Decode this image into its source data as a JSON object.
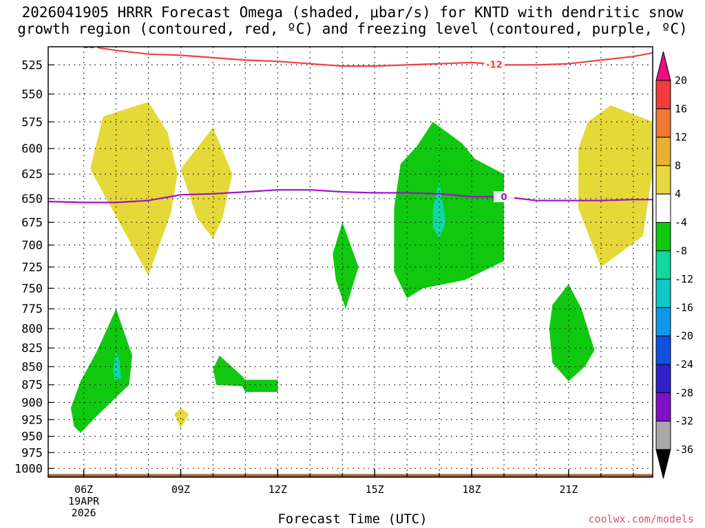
{
  "title_line1": "2026041905 HRRR Forecast Omega (shaded, μbar/s) for KNTD with dendritic snow",
  "title_line2": "growth region (contoured, red, ºC) and freezing level (contoured, purple, ºC)",
  "xlabel": "Forecast Time (UTC)",
  "credit": "coolwx.com/models",
  "chart_data": {
    "type": "heatmap",
    "x_axis": {
      "unit": "hour UTC",
      "range": [
        4.9,
        23.6
      ],
      "ticks": [
        {
          "hour": 6,
          "label": "06Z",
          "sub1": "19APR",
          "sub2": "2026"
        },
        {
          "hour": 9,
          "label": "09Z"
        },
        {
          "hour": 12,
          "label": "12Z"
        },
        {
          "hour": 15,
          "label": "15Z"
        },
        {
          "hour": 18,
          "label": "18Z"
        },
        {
          "hour": 21,
          "label": "21Z"
        }
      ],
      "grid_hours": [
        6,
        7,
        8,
        9,
        10,
        11,
        12,
        13,
        14,
        15,
        16,
        17,
        18,
        19,
        20,
        21,
        22,
        23
      ]
    },
    "y_axis": {
      "unit": "hPa",
      "scale": "log",
      "range": [
        510,
        1014
      ],
      "ticks": [
        525,
        550,
        575,
        600,
        625,
        650,
        675,
        700,
        725,
        750,
        775,
        800,
        825,
        850,
        875,
        900,
        925,
        950,
        975,
        1000
      ]
    },
    "grid": "dotted",
    "colorbar": {
      "levels": [
        20,
        16,
        12,
        8,
        4,
        -4,
        -8,
        -12,
        -16,
        -20,
        -24,
        -28,
        -32,
        -36
      ],
      "colors": [
        "#e8107a",
        "#f03c3c",
        "#f07830",
        "#e8b030",
        "#e8d840",
        "#ffffff",
        "#10c810",
        "#10d8a0",
        "#10c8c8",
        "#1098e8",
        "#1050e0",
        "#3020c8",
        "#8010c8",
        "#a8a8a8",
        "#000000"
      ]
    },
    "shaded_regions": [
      {
        "class": "+4 to +8",
        "color": "#e5d93a",
        "points": [
          [
            6.2,
            620
          ],
          [
            6.6,
            570
          ],
          [
            8.0,
            557
          ],
          [
            8.6,
            585
          ],
          [
            8.9,
            625
          ],
          [
            8.7,
            665
          ],
          [
            8.0,
            735
          ]
        ]
      },
      {
        "class": "+4 to +8",
        "color": "#e5d93a",
        "points": [
          [
            9.0,
            620
          ],
          [
            10.0,
            580
          ],
          [
            10.6,
            625
          ],
          [
            10.3,
            670
          ],
          [
            10.0,
            693
          ],
          [
            9.5,
            670
          ]
        ]
      },
      {
        "class": "+4 to +8",
        "color": "#e5d93a",
        "points": [
          [
            21.3,
            600
          ],
          [
            21.6,
            575
          ],
          [
            22.3,
            560
          ],
          [
            23.6,
            575
          ],
          [
            23.6,
            622
          ],
          [
            23.3,
            690
          ],
          [
            22.0,
            725
          ],
          [
            21.3,
            660
          ]
        ]
      },
      {
        "class": "+4 to +8",
        "color": "#e5d93a",
        "points": [
          [
            8.8,
            917
          ],
          [
            9.0,
            908
          ],
          [
            9.25,
            917
          ],
          [
            9.0,
            938
          ]
        ]
      },
      {
        "class": "-4 to -8",
        "color": "#10c810",
        "points": [
          [
            5.6,
            908
          ],
          [
            5.9,
            870
          ],
          [
            6.4,
            830
          ],
          [
            7.0,
            775
          ],
          [
            7.5,
            835
          ],
          [
            7.4,
            875
          ],
          [
            6.4,
            920
          ],
          [
            5.9,
            945
          ],
          [
            5.7,
            935
          ]
        ]
      },
      {
        "class": "-4 to -8",
        "color": "#10c810",
        "points": [
          [
            10.0,
            853
          ],
          [
            10.2,
            835
          ],
          [
            10.9,
            863
          ],
          [
            11.0,
            868
          ],
          [
            12.0,
            868
          ],
          [
            12.0,
            885
          ],
          [
            11.0,
            885
          ],
          [
            10.9,
            877
          ],
          [
            10.1,
            875
          ]
        ]
      },
      {
        "class": "-4 to -8",
        "color": "#10c810",
        "points": [
          [
            13.7,
            710
          ],
          [
            14.0,
            675
          ],
          [
            14.5,
            725
          ],
          [
            14.1,
            775
          ],
          [
            13.8,
            740
          ]
        ]
      },
      {
        "class": "-4 to -8",
        "color": "#10c810",
        "points": [
          [
            15.6,
            660
          ],
          [
            15.8,
            615
          ],
          [
            16.3,
            598
          ],
          [
            16.8,
            575
          ],
          [
            17.7,
            595
          ],
          [
            18.1,
            610
          ],
          [
            19.0,
            625
          ],
          [
            19.0,
            718
          ],
          [
            17.8,
            740
          ],
          [
            16.5,
            750
          ],
          [
            16.0,
            762
          ],
          [
            15.6,
            730
          ]
        ]
      },
      {
        "class": "-4 to -8",
        "color": "#10c810",
        "points": [
          [
            20.4,
            800
          ],
          [
            20.5,
            770
          ],
          [
            21.0,
            745
          ],
          [
            21.4,
            775
          ],
          [
            21.8,
            828
          ],
          [
            21.5,
            850
          ],
          [
            21.0,
            870
          ],
          [
            20.5,
            845
          ]
        ]
      },
      {
        "class": "-8 to -12",
        "color": "#10d8a0",
        "points": [
          [
            16.8,
            660
          ],
          [
            17.0,
            632
          ],
          [
            17.2,
            675
          ],
          [
            17.0,
            693
          ],
          [
            16.8,
            680
          ]
        ]
      },
      {
        "class": "-8 to -12",
        "color": "#10d8a0",
        "points": [
          [
            6.9,
            855
          ],
          [
            7.0,
            830
          ],
          [
            7.1,
            840
          ],
          [
            7.15,
            866
          ],
          [
            6.95,
            868
          ]
        ]
      }
    ],
    "surface_strip": {
      "color": "#a8643a",
      "from_hpa": 1009,
      "to_hpa": 1014
    },
    "contours": [
      {
        "name": "-12",
        "color": "#f04040",
        "label": "-12",
        "label_at": [
          {
            "x": 6.1
          },
          {
            "x": 18.7
          }
        ],
        "points": [
          [
            5.9,
            507
          ],
          [
            6.5,
            511
          ],
          [
            7.0,
            513
          ],
          [
            8.0,
            516
          ],
          [
            9.0,
            517
          ],
          [
            10.0,
            519
          ],
          [
            11.0,
            521
          ],
          [
            12.0,
            522
          ],
          [
            13.0,
            524
          ],
          [
            14.0,
            526
          ],
          [
            15.0,
            526
          ],
          [
            16.0,
            525
          ],
          [
            17.0,
            524
          ],
          [
            18.0,
            523
          ],
          [
            19.0,
            525
          ],
          [
            20.0,
            525
          ],
          [
            21.0,
            524
          ],
          [
            22.0,
            521
          ],
          [
            23.0,
            518
          ],
          [
            23.6,
            515
          ]
        ]
      },
      {
        "name": "0",
        "color": "#a010c8",
        "label": "0",
        "label_at": [
          {
            "x": 19.0
          }
        ],
        "points": [
          [
            4.9,
            653
          ],
          [
            6.0,
            654
          ],
          [
            7.0,
            654
          ],
          [
            8.0,
            652
          ],
          [
            9.0,
            646
          ],
          [
            10.0,
            645
          ],
          [
            11.0,
            643
          ],
          [
            12.0,
            641
          ],
          [
            13.0,
            641
          ],
          [
            14.0,
            643
          ],
          [
            15.0,
            644
          ],
          [
            16.0,
            644
          ],
          [
            17.0,
            645
          ],
          [
            18.0,
            648
          ],
          [
            19.0,
            648
          ],
          [
            20.0,
            652
          ],
          [
            21.0,
            652
          ],
          [
            22.0,
            652
          ],
          [
            23.0,
            651
          ],
          [
            23.6,
            651
          ]
        ]
      }
    ]
  }
}
